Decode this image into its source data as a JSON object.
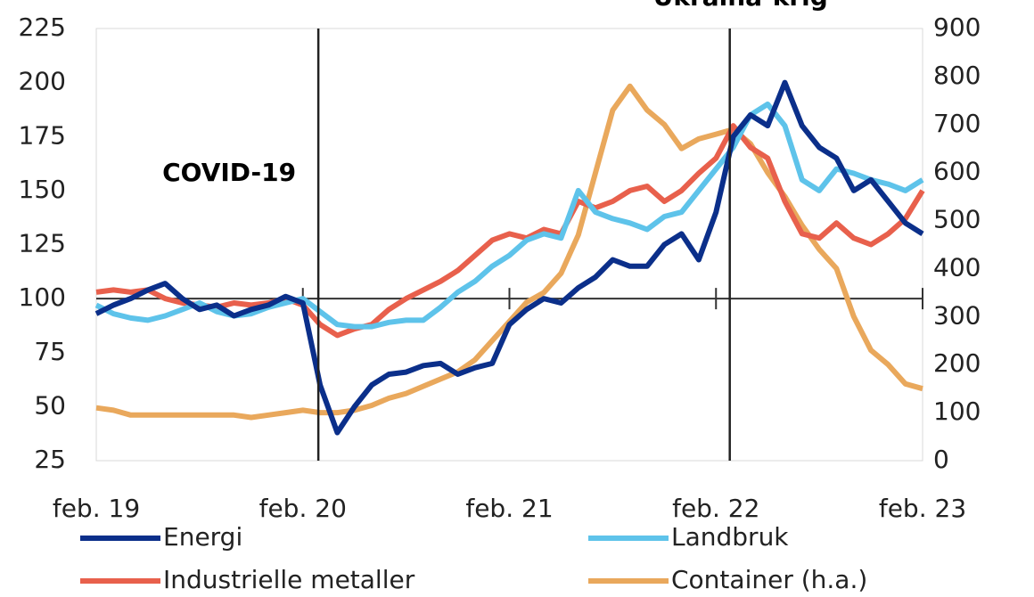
{
  "chart_data": {
    "type": "line",
    "annotations": [
      {
        "x": 12.9,
        "label": "COVID-19"
      },
      {
        "x": 36.8,
        "label": "Ukraina-krig"
      }
    ],
    "x": [
      0,
      1,
      2,
      3,
      4,
      5,
      6,
      7,
      8,
      9,
      10,
      11,
      12,
      13,
      14,
      15,
      16,
      17,
      18,
      19,
      20,
      21,
      22,
      23,
      24,
      25,
      26,
      27,
      28,
      29,
      30,
      31,
      32,
      33,
      34,
      35,
      36,
      37,
      38,
      39,
      40,
      41,
      42,
      43,
      44,
      45,
      46,
      47,
      48
    ],
    "xlim": [
      0,
      48
    ],
    "xticks": [
      {
        "value": 0,
        "label": "feb. 19"
      },
      {
        "value": 12,
        "label": "feb. 20"
      },
      {
        "value": 24,
        "label": "feb. 21"
      },
      {
        "value": 36,
        "label": "feb. 22"
      },
      {
        "value": 48,
        "label": "feb. 23"
      }
    ],
    "ylim": [
      25,
      225
    ],
    "yticks": [
      25,
      50,
      75,
      100,
      125,
      150,
      175,
      200,
      225
    ],
    "y2lim": [
      0,
      900
    ],
    "y2ticks": [
      0,
      100,
      200,
      300,
      400,
      500,
      600,
      700,
      800,
      900
    ],
    "x_axis_at": 100,
    "series": [
      {
        "name": "Energi",
        "color": "#0b2f8a",
        "values": [
          93,
          97,
          100,
          104,
          107,
          100,
          95,
          97,
          92,
          95,
          97,
          101,
          98,
          60,
          38,
          50,
          60,
          65,
          66,
          69,
          70,
          65,
          68,
          70,
          88,
          95,
          100,
          98,
          105,
          110,
          118,
          115,
          115,
          125,
          130,
          118,
          140,
          175,
          185,
          180,
          200,
          180,
          170,
          165,
          150,
          155,
          145,
          135,
          130
        ]
      },
      {
        "name": "Landbruk",
        "color": "#5ec3ea",
        "values": [
          97,
          93,
          91,
          90,
          92,
          95,
          98,
          94,
          92,
          93,
          96,
          98,
          100,
          94,
          88,
          87,
          87,
          89,
          90,
          90,
          96,
          103,
          108,
          115,
          120,
          127,
          130,
          128,
          150,
          140,
          137,
          135,
          132,
          138,
          140,
          150,
          160,
          170,
          185,
          190,
          180,
          155,
          150,
          160,
          158,
          155,
          153,
          150,
          155
        ]
      },
      {
        "name": "Industrielle metaller",
        "color": "#e8604c",
        "values": [
          103,
          104,
          103,
          104,
          100,
          98,
          97,
          96,
          98,
          97,
          98,
          100,
          97,
          88,
          83,
          86,
          88,
          95,
          100,
          104,
          108,
          113,
          120,
          127,
          130,
          128,
          132,
          130,
          145,
          142,
          145,
          150,
          152,
          145,
          150,
          158,
          165,
          180,
          170,
          165,
          145,
          130,
          128,
          135,
          128,
          125,
          130,
          137,
          150
        ]
      },
      {
        "name": "Container (h.a.)",
        "color": "#e9a85c",
        "axis": "y2",
        "values": [
          110,
          105,
          95,
          95,
          95,
          95,
          95,
          95,
          95,
          90,
          95,
          100,
          105,
          100,
          100,
          105,
          115,
          130,
          140,
          155,
          170,
          185,
          210,
          250,
          290,
          330,
          350,
          390,
          470,
          600,
          730,
          780,
          730,
          700,
          650,
          670,
          680,
          690,
          660,
          600,
          550,
          490,
          440,
          400,
          300,
          230,
          200,
          160,
          150
        ]
      }
    ]
  }
}
